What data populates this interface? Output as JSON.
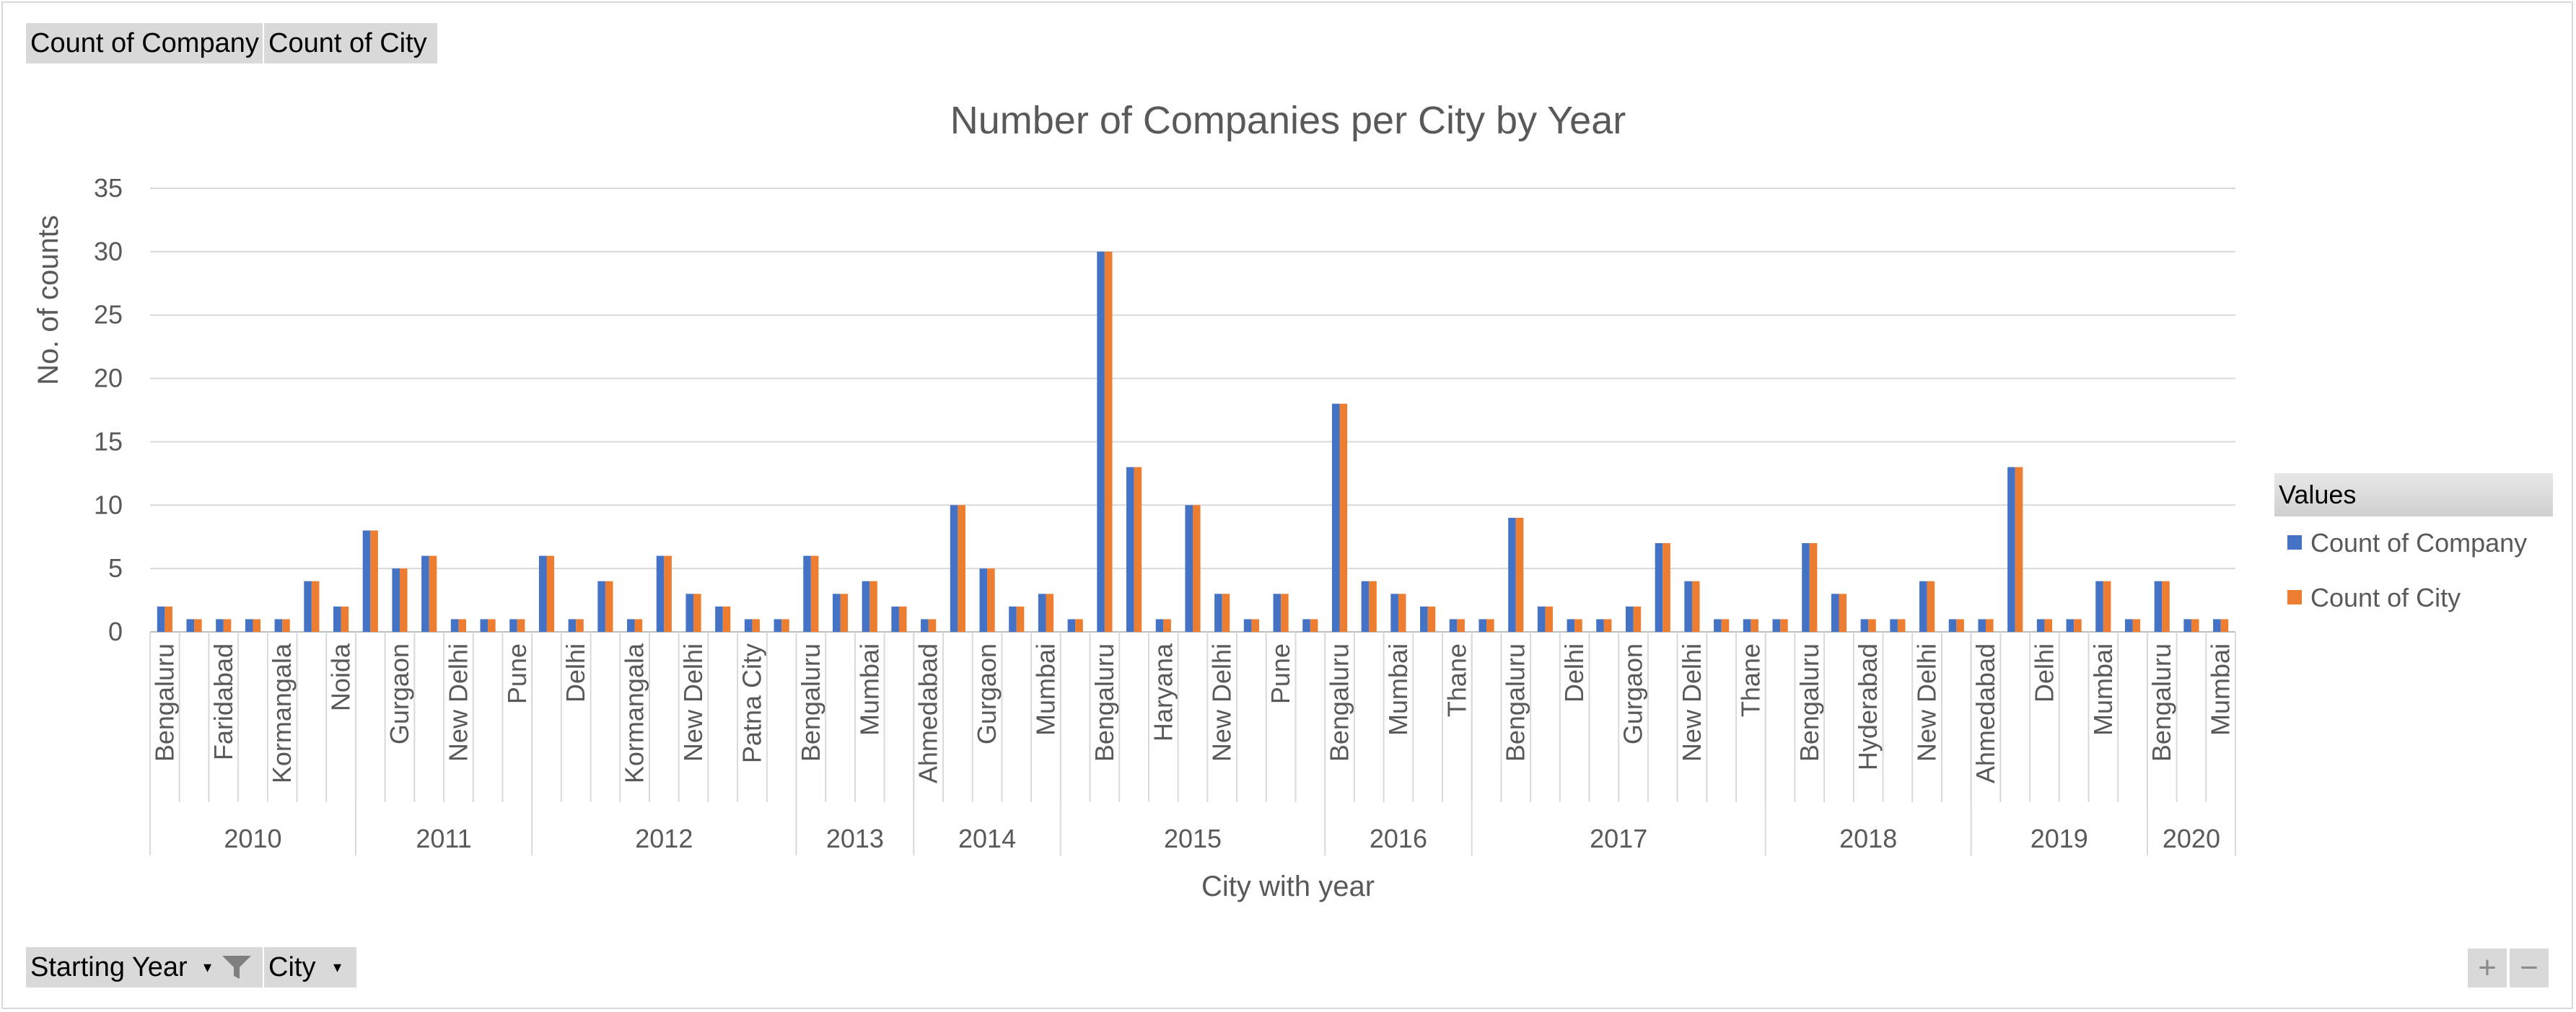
{
  "top_buttons": {
    "company": "Count of Company",
    "city": "Count of City"
  },
  "bottom_buttons": {
    "year": "Starting Year",
    "city": "City"
  },
  "zoom": {
    "plus": "+",
    "minus": "−"
  },
  "legend": {
    "header": "Values",
    "items": [
      {
        "label": "Count of Company",
        "color": "#4472c4"
      },
      {
        "label": "Count of City",
        "color": "#ed7d31"
      }
    ]
  },
  "chart_data": {
    "type": "bar",
    "title": "Number of Companies per City by Year",
    "xlabel": "City with year",
    "ylabel": "No. of counts",
    "ylim": [
      0,
      35
    ],
    "yticks": [
      0,
      5,
      10,
      15,
      20,
      25,
      30,
      35
    ],
    "grid": true,
    "legend_position": "right",
    "groups": [
      {
        "year": "2010",
        "items": [
          {
            "city": "Bengaluru",
            "show": true,
            "value": 2
          },
          {
            "city": "",
            "show": false,
            "value": 1
          },
          {
            "city": "Faridabad",
            "show": true,
            "value": 1
          },
          {
            "city": "",
            "show": false,
            "value": 1
          },
          {
            "city": "Kormangala",
            "show": true,
            "value": 1
          },
          {
            "city": "",
            "show": false,
            "value": 4
          },
          {
            "city": "Noida",
            "show": true,
            "value": 2
          }
        ]
      },
      {
        "year": "2011",
        "items": [
          {
            "city": "",
            "show": false,
            "value": 8
          },
          {
            "city": "Gurgaon",
            "show": true,
            "value": 5
          },
          {
            "city": "",
            "show": false,
            "value": 6
          },
          {
            "city": "New Delhi",
            "show": true,
            "value": 1
          },
          {
            "city": "",
            "show": false,
            "value": 1
          },
          {
            "city": "Pune",
            "show": true,
            "value": 1
          }
        ]
      },
      {
        "year": "2012",
        "items": [
          {
            "city": "",
            "show": false,
            "value": 6
          },
          {
            "city": "Delhi",
            "show": true,
            "value": 1
          },
          {
            "city": "",
            "show": false,
            "value": 4
          },
          {
            "city": "Kormangala",
            "show": true,
            "value": 1
          },
          {
            "city": "",
            "show": false,
            "value": 6
          },
          {
            "city": "New Delhi",
            "show": true,
            "value": 3
          },
          {
            "city": "",
            "show": false,
            "value": 2
          },
          {
            "city": "Patna City",
            "show": true,
            "value": 1
          },
          {
            "city": "",
            "show": false,
            "value": 1
          }
        ]
      },
      {
        "year": "2013",
        "items": [
          {
            "city": "Bengaluru",
            "show": true,
            "value": 6
          },
          {
            "city": "",
            "show": false,
            "value": 3
          },
          {
            "city": "Mumbai",
            "show": true,
            "value": 4
          },
          {
            "city": "",
            "show": false,
            "value": 2
          }
        ]
      },
      {
        "year": "2014",
        "items": [
          {
            "city": "Ahmedabad",
            "show": true,
            "value": 1
          },
          {
            "city": "",
            "show": false,
            "value": 10
          },
          {
            "city": "Gurgaon",
            "show": true,
            "value": 5
          },
          {
            "city": "",
            "show": false,
            "value": 2
          },
          {
            "city": "Mumbai",
            "show": true,
            "value": 3
          }
        ]
      },
      {
        "year": "2015",
        "items": [
          {
            "city": "",
            "show": false,
            "value": 1
          },
          {
            "city": "Bengaluru",
            "show": true,
            "value": 30
          },
          {
            "city": "",
            "show": false,
            "value": 13
          },
          {
            "city": "Haryana",
            "show": true,
            "value": 1
          },
          {
            "city": "",
            "show": false,
            "value": 10
          },
          {
            "city": "New Delhi",
            "show": true,
            "value": 3
          },
          {
            "city": "",
            "show": false,
            "value": 1
          },
          {
            "city": "Pune",
            "show": true,
            "value": 3
          },
          {
            "city": "",
            "show": false,
            "value": 1
          }
        ]
      },
      {
        "year": "2016",
        "items": [
          {
            "city": "Bengaluru",
            "show": true,
            "value": 18
          },
          {
            "city": "",
            "show": false,
            "value": 4
          },
          {
            "city": "Mumbai",
            "show": true,
            "value": 3
          },
          {
            "city": "",
            "show": false,
            "value": 2
          },
          {
            "city": "Thane",
            "show": true,
            "value": 1
          }
        ]
      },
      {
        "year": "2017",
        "items": [
          {
            "city": "",
            "show": false,
            "value": 1
          },
          {
            "city": "Bengaluru",
            "show": true,
            "value": 9
          },
          {
            "city": "",
            "show": false,
            "value": 2
          },
          {
            "city": "Delhi",
            "show": true,
            "value": 1
          },
          {
            "city": "",
            "show": false,
            "value": 1
          },
          {
            "city": "Gurgaon",
            "show": true,
            "value": 2
          },
          {
            "city": "",
            "show": false,
            "value": 7
          },
          {
            "city": "New Delhi",
            "show": true,
            "value": 4
          },
          {
            "city": "",
            "show": false,
            "value": 1
          },
          {
            "city": "Thane",
            "show": true,
            "value": 1
          }
        ]
      },
      {
        "year": "2018",
        "items": [
          {
            "city": "",
            "show": false,
            "value": 1
          },
          {
            "city": "Bengaluru",
            "show": true,
            "value": 7
          },
          {
            "city": "",
            "show": false,
            "value": 3
          },
          {
            "city": "Hyderabad",
            "show": true,
            "value": 1
          },
          {
            "city": "",
            "show": false,
            "value": 1
          },
          {
            "city": "New Delhi",
            "show": true,
            "value": 4
          },
          {
            "city": "",
            "show": false,
            "value": 1
          }
        ]
      },
      {
        "year": "2019",
        "items": [
          {
            "city": "Ahmedabad",
            "show": true,
            "value": 1
          },
          {
            "city": "",
            "show": false,
            "value": 13
          },
          {
            "city": "Delhi",
            "show": true,
            "value": 1
          },
          {
            "city": "",
            "show": false,
            "value": 1
          },
          {
            "city": "Mumbai",
            "show": true,
            "value": 4
          },
          {
            "city": "",
            "show": false,
            "value": 1
          }
        ]
      },
      {
        "year": "2020",
        "items": [
          {
            "city": "Bengaluru",
            "show": true,
            "value": 4
          },
          {
            "city": "",
            "show": false,
            "value": 1
          },
          {
            "city": "Mumbai",
            "show": true,
            "value": 1
          }
        ]
      }
    ]
  }
}
